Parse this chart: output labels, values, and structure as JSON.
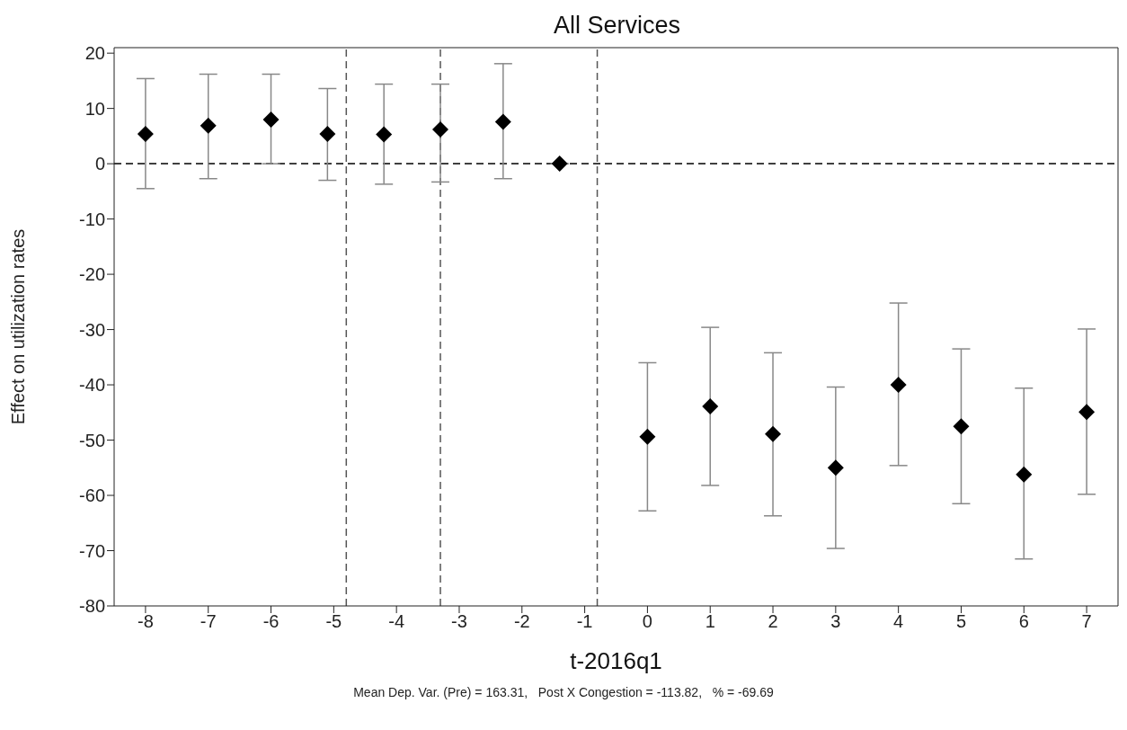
{
  "chart_data": {
    "type": "scatter",
    "title": "All Services",
    "xlabel": "t-2016q1",
    "ylabel": "Effect on utilization rates",
    "annotations": [
      "Mean Dep. Var. (Pre) = 163.31,   Post X Congestion = -113.82,   % = -69.69"
    ],
    "x": [
      -8,
      -7,
      -6,
      -5.1,
      -4.2,
      -3.3,
      -2.3,
      -1.4,
      0,
      1,
      2,
      3,
      4,
      5,
      6,
      7
    ],
    "series": [
      {
        "color": "#000000",
        "values": [
          5.4,
          6.9,
          8.0,
          5.4,
          5.3,
          6.2,
          7.6,
          0,
          -49.4,
          -43.9,
          -48.9,
          -55.0,
          -40.0,
          -47.5,
          -56.2,
          -44.9
        ],
        "errors": [
          [
            -4.5,
            15.4
          ],
          [
            -2.7,
            16.2
          ],
          [
            0,
            16.2
          ],
          [
            -3.0,
            13.6
          ],
          [
            -3.7,
            14.4
          ],
          [
            -3.3,
            14.4
          ],
          [
            -2.7,
            18.1
          ],
          null,
          [
            -62.8,
            -36.0
          ],
          [
            -58.2,
            -29.6
          ],
          [
            -63.7,
            -34.2
          ],
          [
            -69.6,
            -40.4
          ],
          [
            -54.6,
            -25.2
          ],
          [
            -61.5,
            -33.5
          ],
          [
            -71.5,
            -40.6
          ],
          [
            -59.8,
            -29.9
          ]
        ]
      }
    ],
    "xlim": [
      -8.5,
      7.5
    ],
    "xticks": [
      -8,
      -7,
      -6,
      -5,
      -4,
      -3,
      -2,
      -1,
      0,
      1,
      2,
      3,
      4,
      5,
      6,
      7
    ],
    "ylim": [
      -80,
      21
    ],
    "yticks": [
      20,
      10,
      0,
      -10,
      -20,
      -30,
      -40,
      -50,
      -60,
      -70,
      -80
    ],
    "ref_lines": [
      {
        "axis": "y",
        "value": 0,
        "line_style": "dashed",
        "color": "#000000"
      },
      {
        "axis": "x",
        "value": -4.8,
        "line_style": "dashed",
        "color": "#555555"
      },
      {
        "axis": "x",
        "value": -3.3,
        "line_style": "dashed",
        "color": "#555555"
      },
      {
        "axis": "x",
        "value": -0.8,
        "line_style": "dashed",
        "color": "#555555"
      }
    ],
    "marker": "diamond"
  }
}
